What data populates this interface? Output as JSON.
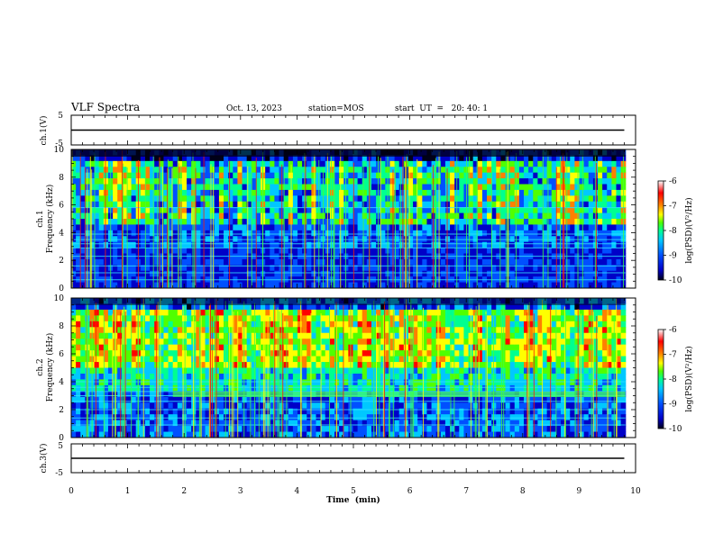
{
  "header": {
    "title": "VLF Spectra",
    "date": "Oct. 13, 2023",
    "station": "station=MOS",
    "start_ut": "start  UT  =   20: 40: 1"
  },
  "colors": {
    "background": "#ffffff",
    "frame": "#000000",
    "colormap": [
      "#000018",
      "#0000c8",
      "#0050ff",
      "#00c8ff",
      "#00ff90",
      "#50ff00",
      "#ffff00",
      "#ff8000",
      "#ff0000",
      "#ffffff"
    ]
  },
  "chart_data": [
    {
      "type": "line",
      "ylabel": "ch.1(V)",
      "ylim": [
        -5,
        5
      ],
      "yticks": [
        "5",
        "-5"
      ],
      "xlim": [
        0,
        10
      ],
      "series": [
        {
          "x": [
            0,
            9.8
          ],
          "values": [
            0,
            0
          ]
        }
      ]
    },
    {
      "type": "heatmap",
      "ylabel": "ch.1\nFrequency (kHz)",
      "ylim": [
        0,
        10
      ],
      "yticks": [
        "0",
        "2",
        "4",
        "6",
        "8",
        "10"
      ],
      "xlim": [
        0,
        10
      ],
      "colorbar": {
        "label": "log(PSD)(V²/Hz)",
        "range": [
          -10,
          -6
        ],
        "ticks": [
          "-6",
          "-7",
          "-8",
          "-9",
          "-10"
        ]
      }
    },
    {
      "type": "heatmap",
      "ylabel": "ch.2\nFrequency (kHz)",
      "ylim": [
        0,
        10
      ],
      "yticks": [
        "0",
        "2",
        "4",
        "6",
        "8",
        "10"
      ],
      "xlim": [
        0,
        10
      ],
      "colorbar": {
        "label": "log(PSD)(V²/Hz)",
        "range": [
          -10,
          -6
        ],
        "ticks": [
          "-6",
          "-7",
          "-8",
          "-9",
          "-10"
        ]
      }
    },
    {
      "type": "line",
      "ylabel": "ch.3(V)",
      "ylim": [
        -5,
        5
      ],
      "yticks": [
        "5",
        "-5"
      ],
      "xlim": [
        0,
        10
      ],
      "xlabel": "Time  (min)",
      "xticks": [
        "0",
        "1",
        "2",
        "3",
        "4",
        "5",
        "6",
        "7",
        "8",
        "9",
        "10"
      ],
      "series": [
        {
          "x": [
            0,
            9.8
          ],
          "values": [
            0,
            0
          ]
        }
      ]
    }
  ]
}
